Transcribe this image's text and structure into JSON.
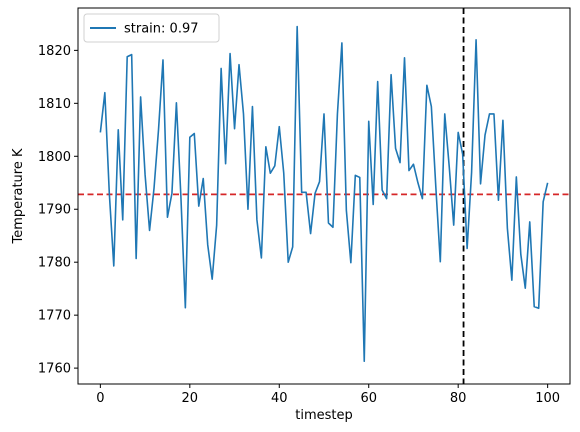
{
  "chart_data": {
    "type": "line",
    "xlabel": "timestep",
    "ylabel": "Temperature K",
    "xlim": [
      -5,
      105
    ],
    "ylim": [
      1757,
      1828
    ],
    "xticks": [
      0,
      20,
      40,
      60,
      80,
      100
    ],
    "yticks": [
      1760,
      1770,
      1780,
      1790,
      1800,
      1810,
      1820
    ],
    "grid": false,
    "legend_position": "top-left",
    "series": [
      {
        "name": "strain: 0.97",
        "color": "#1f77b4",
        "x": [
          0,
          1,
          2,
          3,
          4,
          5,
          6,
          7,
          8,
          9,
          10,
          11,
          12,
          13,
          14,
          15,
          16,
          17,
          18,
          19,
          20,
          21,
          22,
          23,
          24,
          25,
          26,
          27,
          28,
          29,
          30,
          31,
          32,
          33,
          34,
          35,
          36,
          37,
          38,
          39,
          40,
          41,
          42,
          43,
          44,
          45,
          46,
          47,
          48,
          49,
          50,
          51,
          52,
          53,
          54,
          55,
          56,
          57,
          58,
          59,
          60,
          61,
          62,
          63,
          64,
          65,
          66,
          67,
          68,
          69,
          70,
          71,
          72,
          73,
          74,
          75,
          76,
          77,
          78,
          79,
          80,
          81,
          82,
          83,
          84,
          85,
          86,
          87,
          88,
          89,
          90,
          91,
          92,
          93,
          94,
          95,
          96,
          97,
          98,
          99,
          100
        ],
        "y": [
          1804.5,
          1812.0,
          1793.0,
          1779.3,
          1805.0,
          1788.0,
          1818.8,
          1819.2,
          1780.7,
          1811.2,
          1796.5,
          1786.0,
          1794.0,
          1805.0,
          1818.2,
          1788.5,
          1793.0,
          1810.1,
          1792.5,
          1771.4,
          1803.6,
          1804.3,
          1790.6,
          1795.8,
          1783.3,
          1776.8,
          1787.0,
          1816.6,
          1798.6,
          1819.4,
          1805.2,
          1817.3,
          1808.0,
          1790.0,
          1809.4,
          1788.0,
          1780.8,
          1801.8,
          1796.8,
          1798.2,
          1805.6,
          1796.8,
          1780.0,
          1782.9,
          1824.5,
          1793.2,
          1793.2,
          1785.4,
          1793.0,
          1795.2,
          1808.0,
          1787.4,
          1786.6,
          1808.0,
          1821.4,
          1789.8,
          1779.9,
          1796.4,
          1796.0,
          1761.3,
          1806.6,
          1790.9,
          1814.1,
          1793.6,
          1792.0,
          1815.4,
          1801.5,
          1798.8,
          1818.6,
          1797.3,
          1798.5,
          1795.0,
          1792.0,
          1813.4,
          1809.4,
          1794.2,
          1780.1,
          1808.0,
          1798.0,
          1787.0,
          1804.5,
          1800.4,
          1782.6,
          1797.0,
          1822.0,
          1794.8,
          1804.0,
          1808.0,
          1808.0,
          1791.7,
          1806.8,
          1786.4,
          1776.6,
          1796.1,
          1781.5,
          1775.1,
          1787.6,
          1771.6,
          1771.3,
          1791.4,
          1795.0
        ]
      }
    ],
    "reference_lines": [
      {
        "orientation": "horizontal",
        "value": 1792.8,
        "color": "#d62728",
        "style": "dashed"
      },
      {
        "orientation": "vertical",
        "value": 81.2,
        "color": "#000000",
        "style": "dashed"
      }
    ]
  }
}
